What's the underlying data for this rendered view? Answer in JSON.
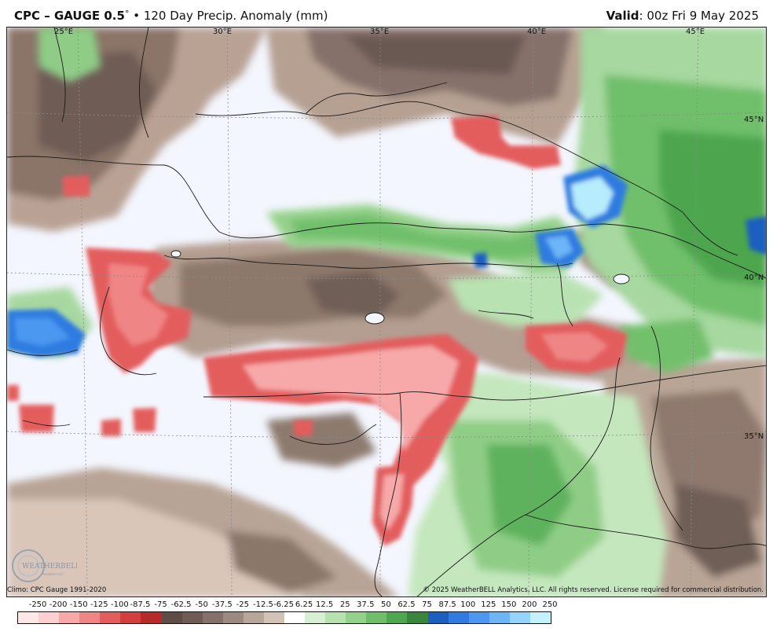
{
  "header": {
    "title_bold": "CPC – GAUGE 0.5",
    "title_degree": "°",
    "title_rest": " • 120 Day Precip. Anomaly (mm)",
    "valid_label": "Valid",
    "valid_time": ": 00z Fri 9 May 2025"
  },
  "map": {
    "lon_labels": [
      "25°E",
      "30°E",
      "35°E",
      "40°E",
      "45°E"
    ],
    "lat_labels": [
      "45°N",
      "40°N",
      "35°N"
    ]
  },
  "footer": {
    "climo": "Climo: CPC Gauge 1991-2020",
    "copyright": "© 2025 WeatherBELL Analytics, LLC. All rights reserved. License required for commercial distribution.",
    "logo_text": "WEATHERBELL",
    "logo_sub": "Analytics LLC"
  },
  "legend": {
    "ticks": [
      "-250",
      "-200",
      "-150",
      "-125",
      "-100",
      "-87.5",
      "-75",
      "-62.5",
      "-50",
      "-37.5",
      "-25",
      "-12.5",
      "-6.25",
      "6.25",
      "12.5",
      "25",
      "37.5",
      "50",
      "62.5",
      "75",
      "87.5",
      "100",
      "125",
      "150",
      "200",
      "250"
    ],
    "colors": [
      "#fde7e7",
      "#fcd0d0",
      "#f7a9a9",
      "#f08585",
      "#e35d5d",
      "#d33e3e",
      "#b72a2a",
      "#5e4d46",
      "#6f5d55",
      "#84726a",
      "#9b8a80",
      "#b7a69a",
      "#d3c3b7",
      "#ffffff",
      "#d8efd4",
      "#b7e2b0",
      "#94d28c",
      "#6fbf6a",
      "#4ea64e",
      "#37863b",
      "#1b5fbf",
      "#2f7be0",
      "#4c98f0",
      "#6cb5f7",
      "#95d5fb",
      "#c4f1fd"
    ]
  }
}
